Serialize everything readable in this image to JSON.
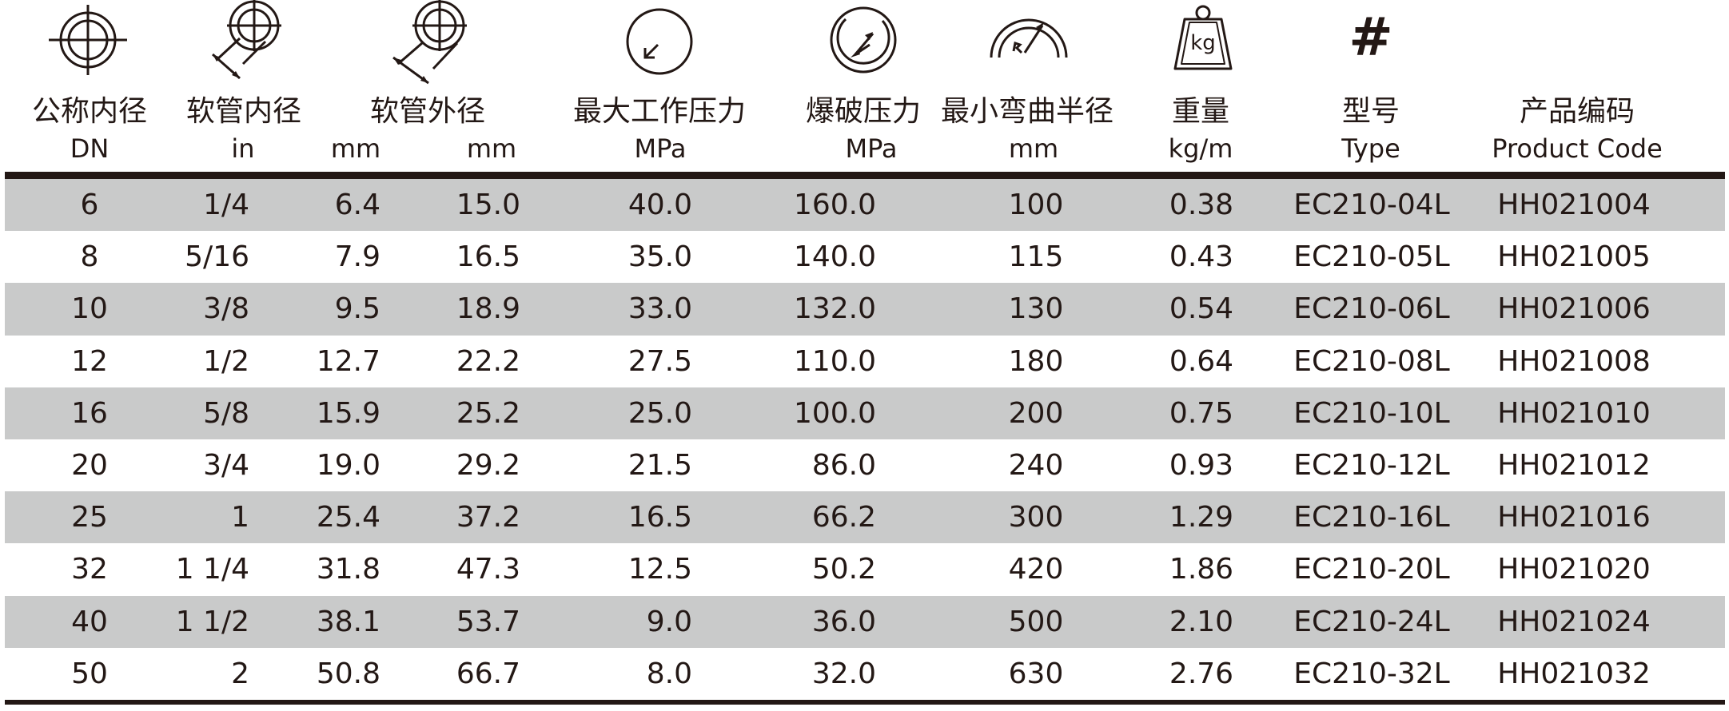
{
  "headers": {
    "dn": {
      "cn": "公称内径",
      "en": "DN"
    },
    "id": {
      "cn": "软管内径",
      "in": "in",
      "mm": "mm"
    },
    "od": {
      "cn": "软管外径",
      "mm": "mm"
    },
    "wp": {
      "cn": "最大工作压力",
      "en": "MPa"
    },
    "bp": {
      "cn": "爆破压力",
      "en": "MPa"
    },
    "br": {
      "cn": "最小弯曲半径",
      "en": "mm"
    },
    "wt": {
      "cn": "重量",
      "en": "kg/m"
    },
    "type": {
      "symbol": "#",
      "cn": "型号",
      "en": "Type"
    },
    "code": {
      "cn": "产品编码",
      "en": "Product Code"
    }
  },
  "icons": {
    "dn": "nominal-diameter-icon",
    "id": "inner-diameter-icon",
    "od": "outer-diameter-icon",
    "wp": "pressure-gauge-icon",
    "bp": "burst-gauge-icon",
    "br": "bend-radius-icon",
    "wt": "weight-icon",
    "wt_label": "kg",
    "type": "hash-icon"
  },
  "rows": [
    {
      "dn": "6",
      "in": "1/4",
      "id_mm": "6.4",
      "od_mm": "15.0",
      "wp": "40.0",
      "bp": "160.0",
      "br": "100",
      "wt": "0.38",
      "type": "EC210-04L",
      "code": "HH021004"
    },
    {
      "dn": "8",
      "in": "5/16",
      "id_mm": "7.9",
      "od_mm": "16.5",
      "wp": "35.0",
      "bp": "140.0",
      "br": "115",
      "wt": "0.43",
      "type": "EC210-05L",
      "code": "HH021005"
    },
    {
      "dn": "10",
      "in": "3/8",
      "id_mm": "9.5",
      "od_mm": "18.9",
      "wp": "33.0",
      "bp": "132.0",
      "br": "130",
      "wt": "0.54",
      "type": "EC210-06L",
      "code": "HH021006"
    },
    {
      "dn": "12",
      "in": "1/2",
      "id_mm": "12.7",
      "od_mm": "22.2",
      "wp": "27.5",
      "bp": "110.0",
      "br": "180",
      "wt": "0.64",
      "type": "EC210-08L",
      "code": "HH021008"
    },
    {
      "dn": "16",
      "in": "5/8",
      "id_mm": "15.9",
      "od_mm": "25.2",
      "wp": "25.0",
      "bp": "100.0",
      "br": "200",
      "wt": "0.75",
      "type": "EC210-10L",
      "code": "HH021010"
    },
    {
      "dn": "20",
      "in": "3/4",
      "id_mm": "19.0",
      "od_mm": "29.2",
      "wp": "21.5",
      "bp": "86.0",
      "br": "240",
      "wt": "0.93",
      "type": "EC210-12L",
      "code": "HH021012"
    },
    {
      "dn": "25",
      "in": "1",
      "id_mm": "25.4",
      "od_mm": "37.2",
      "wp": "16.5",
      "bp": "66.2",
      "br": "300",
      "wt": "1.29",
      "type": "EC210-16L",
      "code": "HH021016"
    },
    {
      "dn": "32",
      "in": "1 1/4",
      "id_mm": "31.8",
      "od_mm": "47.3",
      "wp": "12.5",
      "bp": "50.2",
      "br": "420",
      "wt": "1.86",
      "type": "EC210-20L",
      "code": "HH021020"
    },
    {
      "dn": "40",
      "in": "1 1/2",
      "id_mm": "38.1",
      "od_mm": "53.7",
      "wp": "9.0",
      "bp": "36.0",
      "br": "500",
      "wt": "2.10",
      "type": "EC210-24L",
      "code": "HH021024"
    },
    {
      "dn": "50",
      "in": "2",
      "id_mm": "50.8",
      "od_mm": "66.7",
      "wp": "8.0",
      "bp": "32.0",
      "br": "630",
      "wt": "2.76",
      "type": "EC210-32L",
      "code": "HH021032"
    }
  ]
}
